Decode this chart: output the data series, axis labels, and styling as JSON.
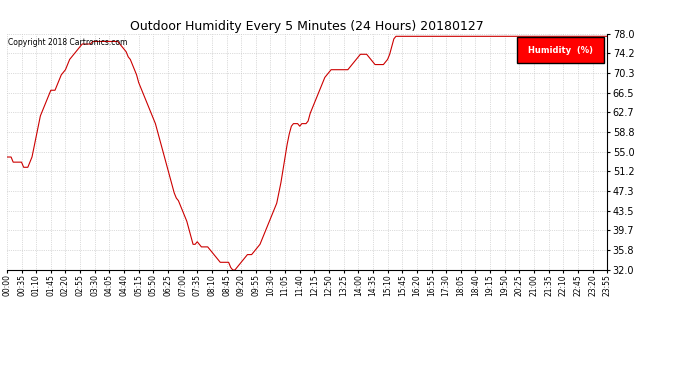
{
  "title": "Outdoor Humidity Every 5 Minutes (24 Hours) 20180127",
  "copyright": "Copyright 2018 Cartronics.com",
  "legend_label": "Humidity  (%)",
  "line_color": "#cc0000",
  "background_color": "#ffffff",
  "grid_color": "#bbbbbb",
  "ylim": [
    32.0,
    78.0
  ],
  "yticks": [
    32.0,
    35.8,
    39.7,
    43.5,
    47.3,
    51.2,
    55.0,
    58.8,
    62.7,
    66.5,
    70.3,
    74.2,
    78.0
  ],
  "humidity_data": [
    [
      0,
      54.0
    ],
    [
      5,
      54.0
    ],
    [
      10,
      54.0
    ],
    [
      15,
      53.0
    ],
    [
      20,
      53.0
    ],
    [
      25,
      53.0
    ],
    [
      30,
      53.0
    ],
    [
      35,
      53.0
    ],
    [
      40,
      52.0
    ],
    [
      45,
      52.0
    ],
    [
      50,
      52.0
    ],
    [
      55,
      53.0
    ],
    [
      60,
      54.0
    ],
    [
      65,
      56.0
    ],
    [
      70,
      58.0
    ],
    [
      75,
      60.0
    ],
    [
      80,
      62.0
    ],
    [
      85,
      63.0
    ],
    [
      90,
      64.0
    ],
    [
      95,
      65.0
    ],
    [
      100,
      66.0
    ],
    [
      105,
      67.0
    ],
    [
      110,
      67.0
    ],
    [
      115,
      67.0
    ],
    [
      120,
      68.0
    ],
    [
      125,
      69.0
    ],
    [
      130,
      70.0
    ],
    [
      135,
      70.5
    ],
    [
      140,
      71.0
    ],
    [
      145,
      72.0
    ],
    [
      150,
      73.0
    ],
    [
      155,
      73.5
    ],
    [
      160,
      74.0
    ],
    [
      165,
      74.5
    ],
    [
      170,
      75.0
    ],
    [
      175,
      75.5
    ],
    [
      180,
      76.0
    ],
    [
      185,
      76.0
    ],
    [
      190,
      76.0
    ],
    [
      195,
      76.0
    ],
    [
      200,
      76.0
    ],
    [
      205,
      76.5
    ],
    [
      210,
      76.5
    ],
    [
      215,
      76.5
    ],
    [
      220,
      76.5
    ],
    [
      225,
      76.5
    ],
    [
      230,
      76.5
    ],
    [
      235,
      76.5
    ],
    [
      240,
      76.5
    ],
    [
      245,
      76.5
    ],
    [
      250,
      76.5
    ],
    [
      255,
      76.5
    ],
    [
      260,
      76.5
    ],
    [
      265,
      76.5
    ],
    [
      270,
      76.0
    ],
    [
      275,
      75.5
    ],
    [
      280,
      75.0
    ],
    [
      285,
      74.5
    ],
    [
      290,
      73.5
    ],
    [
      295,
      73.0
    ],
    [
      300,
      72.0
    ],
    [
      305,
      71.0
    ],
    [
      310,
      70.0
    ],
    [
      315,
      68.5
    ],
    [
      320,
      67.5
    ],
    [
      325,
      66.5
    ],
    [
      330,
      65.5
    ],
    [
      335,
      64.5
    ],
    [
      340,
      63.5
    ],
    [
      345,
      62.5
    ],
    [
      350,
      61.5
    ],
    [
      355,
      60.5
    ],
    [
      360,
      59.0
    ],
    [
      365,
      57.5
    ],
    [
      370,
      56.0
    ],
    [
      375,
      54.5
    ],
    [
      380,
      53.0
    ],
    [
      385,
      51.5
    ],
    [
      390,
      50.0
    ],
    [
      395,
      48.5
    ],
    [
      400,
      47.0
    ],
    [
      405,
      46.0
    ],
    [
      410,
      45.5
    ],
    [
      415,
      44.5
    ],
    [
      420,
      43.5
    ],
    [
      425,
      42.5
    ],
    [
      430,
      41.5
    ],
    [
      435,
      40.0
    ],
    [
      440,
      38.5
    ],
    [
      445,
      37.0
    ],
    [
      450,
      37.0
    ],
    [
      455,
      37.5
    ],
    [
      460,
      37.0
    ],
    [
      465,
      36.5
    ],
    [
      470,
      36.5
    ],
    [
      475,
      36.5
    ],
    [
      480,
      36.5
    ],
    [
      485,
      36.0
    ],
    [
      490,
      35.5
    ],
    [
      495,
      35.0
    ],
    [
      500,
      34.5
    ],
    [
      505,
      34.0
    ],
    [
      510,
      33.5
    ],
    [
      515,
      33.5
    ],
    [
      520,
      33.5
    ],
    [
      525,
      33.5
    ],
    [
      530,
      33.5
    ],
    [
      535,
      32.5
    ],
    [
      540,
      32.0
    ],
    [
      545,
      32.0
    ],
    [
      550,
      32.5
    ],
    [
      555,
      33.0
    ],
    [
      560,
      33.5
    ],
    [
      565,
      34.0
    ],
    [
      570,
      34.5
    ],
    [
      575,
      35.0
    ],
    [
      580,
      35.0
    ],
    [
      585,
      35.0
    ],
    [
      590,
      35.5
    ],
    [
      595,
      36.0
    ],
    [
      600,
      36.5
    ],
    [
      605,
      37.0
    ],
    [
      610,
      38.0
    ],
    [
      615,
      39.0
    ],
    [
      620,
      40.0
    ],
    [
      625,
      41.0
    ],
    [
      630,
      42.0
    ],
    [
      635,
      43.0
    ],
    [
      640,
      44.0
    ],
    [
      645,
      45.0
    ],
    [
      650,
      47.0
    ],
    [
      655,
      49.0
    ],
    [
      660,
      51.5
    ],
    [
      665,
      54.0
    ],
    [
      670,
      56.5
    ],
    [
      675,
      58.5
    ],
    [
      680,
      60.0
    ],
    [
      685,
      60.5
    ],
    [
      690,
      60.5
    ],
    [
      695,
      60.5
    ],
    [
      700,
      60.0
    ],
    [
      705,
      60.5
    ],
    [
      710,
      60.5
    ],
    [
      715,
      60.5
    ],
    [
      720,
      61.0
    ],
    [
      725,
      62.5
    ],
    [
      730,
      63.5
    ],
    [
      735,
      64.5
    ],
    [
      740,
      65.5
    ],
    [
      745,
      66.5
    ],
    [
      750,
      67.5
    ],
    [
      755,
      68.5
    ],
    [
      760,
      69.5
    ],
    [
      765,
      70.0
    ],
    [
      770,
      70.5
    ],
    [
      775,
      71.0
    ],
    [
      780,
      71.0
    ],
    [
      785,
      71.0
    ],
    [
      790,
      71.0
    ],
    [
      795,
      71.0
    ],
    [
      800,
      71.0
    ],
    [
      805,
      71.0
    ],
    [
      810,
      71.0
    ],
    [
      815,
      71.0
    ],
    [
      820,
      71.5
    ],
    [
      825,
      72.0
    ],
    [
      830,
      72.5
    ],
    [
      835,
      73.0
    ],
    [
      840,
      73.5
    ],
    [
      845,
      74.0
    ],
    [
      850,
      74.0
    ],
    [
      855,
      74.0
    ],
    [
      860,
      74.0
    ],
    [
      865,
      73.5
    ],
    [
      870,
      73.0
    ],
    [
      875,
      72.5
    ],
    [
      880,
      72.0
    ],
    [
      885,
      72.0
    ],
    [
      890,
      72.0
    ],
    [
      895,
      72.0
    ],
    [
      900,
      72.0
    ],
    [
      905,
      72.5
    ],
    [
      910,
      73.0
    ],
    [
      915,
      74.0
    ],
    [
      920,
      75.5
    ],
    [
      925,
      77.0
    ],
    [
      930,
      77.5
    ],
    [
      935,
      77.5
    ],
    [
      940,
      77.5
    ],
    [
      945,
      77.5
    ],
    [
      950,
      77.5
    ],
    [
      955,
      77.5
    ],
    [
      960,
      77.5
    ],
    [
      965,
      77.5
    ],
    [
      970,
      77.5
    ],
    [
      975,
      77.5
    ],
    [
      980,
      77.5
    ],
    [
      985,
      77.5
    ],
    [
      990,
      77.5
    ],
    [
      995,
      77.5
    ],
    [
      1000,
      77.5
    ],
    [
      1005,
      77.5
    ],
    [
      1010,
      77.5
    ],
    [
      1015,
      77.5
    ],
    [
      1020,
      77.5
    ],
    [
      1025,
      77.5
    ],
    [
      1030,
      77.5
    ],
    [
      1035,
      77.5
    ],
    [
      1040,
      77.5
    ],
    [
      1045,
      77.5
    ],
    [
      1050,
      77.5
    ],
    [
      1055,
      77.5
    ],
    [
      1060,
      77.5
    ],
    [
      1065,
      77.5
    ],
    [
      1070,
      77.5
    ],
    [
      1075,
      77.5
    ],
    [
      1080,
      77.5
    ],
    [
      1085,
      77.5
    ],
    [
      1090,
      77.5
    ],
    [
      1095,
      77.5
    ],
    [
      1100,
      77.5
    ],
    [
      1105,
      77.5
    ],
    [
      1110,
      77.5
    ],
    [
      1115,
      77.5
    ],
    [
      1120,
      77.5
    ],
    [
      1125,
      77.5
    ],
    [
      1130,
      77.5
    ],
    [
      1135,
      77.5
    ],
    [
      1140,
      77.5
    ],
    [
      1145,
      77.5
    ],
    [
      1150,
      77.5
    ],
    [
      1155,
      77.5
    ],
    [
      1160,
      77.5
    ],
    [
      1165,
      77.5
    ],
    [
      1170,
      77.5
    ],
    [
      1175,
      77.5
    ],
    [
      1180,
      77.5
    ],
    [
      1185,
      77.5
    ],
    [
      1190,
      77.5
    ],
    [
      1195,
      77.5
    ],
    [
      1200,
      77.5
    ],
    [
      1205,
      77.5
    ],
    [
      1210,
      77.5
    ],
    [
      1215,
      77.5
    ],
    [
      1220,
      77.5
    ],
    [
      1225,
      77.5
    ],
    [
      1230,
      77.5
    ],
    [
      1235,
      77.5
    ],
    [
      1240,
      77.5
    ],
    [
      1245,
      77.5
    ],
    [
      1250,
      77.5
    ],
    [
      1255,
      77.5
    ],
    [
      1260,
      77.5
    ],
    [
      1265,
      77.5
    ],
    [
      1270,
      77.5
    ],
    [
      1275,
      77.5
    ],
    [
      1280,
      77.5
    ],
    [
      1285,
      77.5
    ],
    [
      1290,
      77.5
    ],
    [
      1295,
      77.5
    ],
    [
      1300,
      77.5
    ],
    [
      1305,
      77.5
    ],
    [
      1310,
      77.5
    ],
    [
      1315,
      77.5
    ],
    [
      1320,
      77.5
    ],
    [
      1325,
      77.5
    ],
    [
      1330,
      77.5
    ],
    [
      1335,
      77.5
    ],
    [
      1340,
      77.5
    ],
    [
      1345,
      77.5
    ],
    [
      1350,
      77.5
    ],
    [
      1355,
      77.5
    ],
    [
      1360,
      77.5
    ],
    [
      1365,
      77.5
    ],
    [
      1370,
      77.5
    ],
    [
      1375,
      77.5
    ],
    [
      1380,
      77.5
    ],
    [
      1385,
      77.5
    ],
    [
      1390,
      77.5
    ],
    [
      1395,
      77.5
    ],
    [
      1400,
      77.5
    ],
    [
      1405,
      77.5
    ],
    [
      1410,
      77.5
    ],
    [
      1415,
      77.5
    ],
    [
      1420,
      77.5
    ],
    [
      1425,
      77.5
    ],
    [
      1430,
      77.5
    ],
    [
      1435,
      77.5
    ]
  ]
}
